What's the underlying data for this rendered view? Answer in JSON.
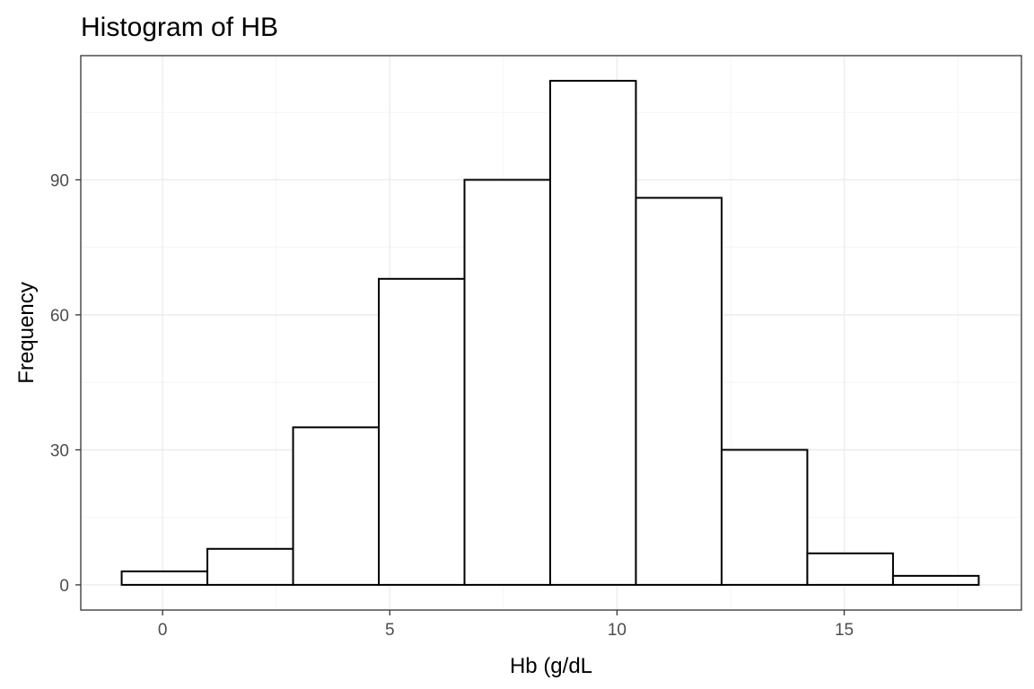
{
  "chart_data": {
    "type": "bar",
    "subtype": "histogram",
    "title": "Histogram of HB",
    "xlabel": "Hb (g/dL",
    "ylabel": "Frequency",
    "bins": [
      {
        "x0": -0.9,
        "x1": 0.986,
        "count": 3
      },
      {
        "x0": 0.986,
        "x1": 2.872,
        "count": 8
      },
      {
        "x0": 2.872,
        "x1": 4.758,
        "count": 35
      },
      {
        "x0": 4.758,
        "x1": 6.644,
        "count": 68
      },
      {
        "x0": 6.644,
        "x1": 8.53,
        "count": 90
      },
      {
        "x0": 8.53,
        "x1": 10.416,
        "count": 112
      },
      {
        "x0": 10.416,
        "x1": 12.302,
        "count": 86
      },
      {
        "x0": 12.302,
        "x1": 14.188,
        "count": 30
      },
      {
        "x0": 14.188,
        "x1": 16.074,
        "count": 7
      },
      {
        "x0": 16.074,
        "x1": 17.96,
        "count": 2
      }
    ],
    "xlim": [
      -1.8,
      18.9
    ],
    "ylim": [
      -5.6,
      117.6
    ],
    "x_ticks": [
      0,
      5,
      10,
      15
    ],
    "y_ticks": [
      0,
      30,
      60,
      90
    ],
    "x_minor": [
      2.5,
      7.5,
      12.5,
      17.5
    ],
    "y_minor": [
      15,
      45,
      75,
      105
    ],
    "grid": true,
    "bar_fill": "#ffffff",
    "bar_stroke": "#000000"
  }
}
